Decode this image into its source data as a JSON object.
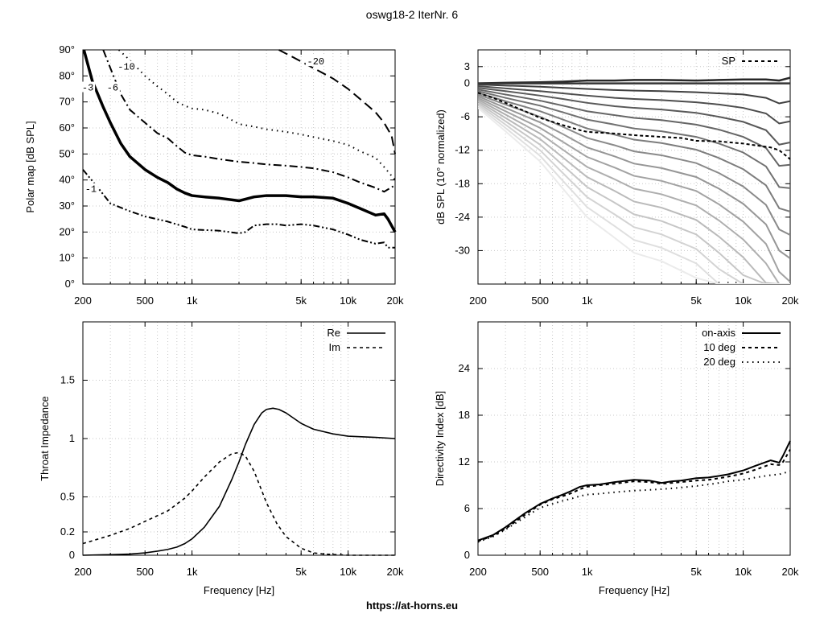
{
  "figure": {
    "title": "oswg18-2 IterNr. 6",
    "footer": "https://at-horns.eu"
  },
  "chart_data": [
    {
      "id": "polar",
      "type": "line",
      "subtype": "contour",
      "xlabel": "",
      "ylabel": "Polar map [dB SPL]",
      "xscale": "log",
      "xlim": [
        200,
        20000
      ],
      "ylim": [
        0,
        90
      ],
      "xticks": [
        200,
        500,
        1000,
        5000,
        10000,
        20000
      ],
      "xtick_labels": [
        "200",
        "500",
        "1k",
        "5k",
        "10k",
        "20k"
      ],
      "yticks": [
        0,
        10,
        20,
        30,
        40,
        50,
        60,
        70,
        80,
        90
      ],
      "ytick_labels": [
        "0°",
        "10°",
        "20°",
        "30°",
        "40°",
        "50°",
        "60°",
        "70°",
        "80°",
        "90°"
      ],
      "grid": true,
      "series": [
        {
          "name": "-1",
          "style": "dash-dot-dot",
          "width": 2,
          "x": [
            200,
            250,
            300,
            400,
            500,
            700,
            900,
            1000,
            1500,
            2000,
            2200,
            2500,
            3000,
            3500,
            4000,
            5000,
            6000,
            8000,
            10000,
            12000,
            15000,
            17000,
            18000,
            20000
          ],
          "y": [
            44,
            37,
            31,
            28,
            26,
            24,
            22,
            21,
            20.5,
            19.5,
            20,
            22.5,
            23,
            23,
            22.5,
            23,
            22.5,
            21,
            19,
            17,
            15.5,
            16,
            14,
            14
          ]
        },
        {
          "name": "-3",
          "style": "solid",
          "width": 3.5,
          "x": [
            203,
            230,
            270,
            300,
            350,
            400,
            500,
            600,
            700,
            800,
            900,
            1000,
            1200,
            1500,
            2000,
            2500,
            3000,
            3500,
            4000,
            5000,
            6000,
            8000,
            10000,
            12000,
            15000,
            17000,
            18000,
            20000
          ],
          "y": [
            90,
            78,
            68,
            62,
            54,
            49,
            44,
            41,
            39,
            36.5,
            35,
            34,
            33.5,
            33,
            32,
            33.5,
            34,
            34,
            34,
            33.5,
            33.5,
            33,
            31,
            29,
            26.5,
            27,
            25,
            20
          ]
        },
        {
          "name": "-6",
          "style": "dash-dot",
          "width": 2,
          "x": [
            270,
            300,
            350,
            400,
            500,
            600,
            700,
            800,
            900,
            1000,
            1200,
            1500,
            2000,
            2500,
            3000,
            4000,
            5000,
            6000,
            8000,
            10000,
            12000,
            15000,
            17000,
            20000
          ],
          "y": [
            90,
            83,
            73,
            67,
            62,
            58,
            56,
            53,
            50.5,
            49.5,
            49,
            48,
            47,
            46.5,
            46,
            45.5,
            45,
            44.5,
            43,
            41,
            39,
            37,
            35.5,
            38
          ]
        },
        {
          "name": "-10",
          "style": "dotted",
          "width": 2,
          "x": [
            340,
            400,
            500,
            600,
            700,
            800,
            900,
            1000,
            1200,
            1500,
            1800,
            2000,
            2500,
            3000,
            4000,
            5000,
            6000,
            8000,
            10000,
            12000,
            15000,
            17000,
            20000
          ],
          "y": [
            90,
            86,
            80,
            76,
            73,
            70,
            68.5,
            67.5,
            67,
            65.5,
            63,
            61.5,
            60.5,
            59.5,
            58.5,
            57.5,
            56.5,
            55,
            53.5,
            51,
            48.5,
            45,
            40
          ]
        },
        {
          "name": "-20",
          "style": "long-dash",
          "width": 2,
          "x": [
            3600,
            4500,
            6000,
            8000,
            10000,
            12000,
            15000,
            17000,
            19000,
            20000
          ],
          "y": [
            90,
            87,
            83,
            79,
            75,
            71,
            66,
            62,
            57,
            50
          ]
        }
      ],
      "annotations": [
        {
          "text": "-3",
          "x": 215,
          "y": 75
        },
        {
          "text": "-6",
          "x": 310,
          "y": 75
        },
        {
          "text": "-10",
          "x": 380,
          "y": 83
        },
        {
          "text": "-20",
          "x": 6200,
          "y": 85
        },
        {
          "text": "-1",
          "x": 225,
          "y": 36
        }
      ]
    },
    {
      "id": "normalized",
      "type": "line",
      "xlabel": "",
      "ylabel": "dB SPL (10° normalized)",
      "xscale": "log",
      "xlim": [
        200,
        20000
      ],
      "ylim": [
        -36,
        6
      ],
      "xticks": [
        200,
        500,
        1000,
        5000,
        10000,
        20000
      ],
      "xtick_labels": [
        "200",
        "500",
        "1k",
        "5k",
        "10k",
        "20k"
      ],
      "yticks": [
        3,
        0,
        -6,
        -12,
        -18,
        -24,
        -30
      ],
      "ytick_labels": [
        "3",
        "0",
        "-6",
        "-12",
        "-18",
        "-24",
        "-30"
      ],
      "grid": true,
      "legend": {
        "position": "top-right",
        "entries": [
          "SP"
        ]
      },
      "sp_series": {
        "name": "SP",
        "x": [
          200,
          250,
          300,
          400,
          500,
          700,
          900,
          1000,
          1500,
          2000,
          3000,
          4000,
          5000,
          7000,
          10000,
          15000,
          17000,
          20000
        ],
        "y": [
          -1.7,
          -2.6,
          -3.5,
          -5,
          -6.2,
          -7.5,
          -8.4,
          -8.7,
          -9,
          -9.3,
          -9.6,
          -9.8,
          -10.3,
          -10.4,
          -10.8,
          -11.5,
          -12,
          -13.6
        ]
      },
      "family": {
        "count": 17,
        "step_deg": 5,
        "x": [
          200,
          300,
          500,
          700,
          1000,
          1500,
          2000,
          3000,
          5000,
          7000,
          10000,
          14000,
          17000,
          20000
        ],
        "curves": [
          [
            0,
            0.1,
            0.2,
            0.3,
            0.5,
            0.5,
            0.6,
            0.6,
            0.5,
            0.6,
            0.7,
            0.7,
            0.5,
            1.0
          ],
          [
            0,
            0,
            0,
            0,
            0,
            0,
            0,
            0,
            0,
            0,
            0,
            0,
            0,
            0
          ],
          [
            -0.2,
            -0.4,
            -0.6,
            -0.8,
            -1.0,
            -1.2,
            -1.3,
            -1.4,
            -1.6,
            -1.8,
            -2.0,
            -2.6,
            -3.6,
            -3.2
          ],
          [
            -0.5,
            -0.9,
            -1.4,
            -1.8,
            -2.2,
            -2.6,
            -2.8,
            -3.0,
            -3.4,
            -3.8,
            -4.4,
            -5.4,
            -7.2,
            -6.8
          ],
          [
            -0.8,
            -1.4,
            -2.2,
            -2.8,
            -3.5,
            -4.1,
            -4.4,
            -4.7,
            -5.3,
            -6.0,
            -6.9,
            -8.4,
            -11.0,
            -10.6
          ],
          [
            -1.1,
            -2.0,
            -3.1,
            -4.0,
            -5.0,
            -5.7,
            -6.2,
            -6.6,
            -7.4,
            -8.3,
            -9.6,
            -11.6,
            -14.8,
            -14.6
          ],
          [
            -1.4,
            -2.6,
            -4.0,
            -5.2,
            -6.5,
            -7.4,
            -8.1,
            -8.6,
            -9.6,
            -10.8,
            -12.4,
            -14.9,
            -18.6,
            -18.8
          ],
          [
            -1.7,
            -3.2,
            -5.0,
            -6.5,
            -8.1,
            -9.2,
            -10.1,
            -10.7,
            -11.9,
            -13.4,
            -15.4,
            -18.3,
            -22.4,
            -23.0
          ],
          [
            -2.0,
            -3.8,
            -6.0,
            -7.8,
            -9.8,
            -11.1,
            -12.2,
            -12.9,
            -14.3,
            -16.1,
            -18.5,
            -21.8,
            -26.2,
            -27.2
          ],
          [
            -2.3,
            -4.4,
            -7.0,
            -9.1,
            -11.5,
            -13.1,
            -14.4,
            -15.2,
            -16.8,
            -18.9,
            -21.6,
            -25.3,
            -30.0,
            -31.4
          ],
          [
            -2.6,
            -5.0,
            -8.0,
            -10.5,
            -13.2,
            -15.1,
            -16.6,
            -17.5,
            -19.3,
            -21.7,
            -24.8,
            -28.8,
            -33.8,
            -35.6
          ],
          [
            -2.9,
            -5.6,
            -9.0,
            -11.9,
            -15.0,
            -17.2,
            -18.9,
            -19.9,
            -21.9,
            -24.6,
            -28.0,
            -32.3,
            -36,
            -36
          ],
          [
            -3.2,
            -6.2,
            -10.0,
            -13.3,
            -16.8,
            -19.3,
            -21.2,
            -22.3,
            -24.5,
            -27.5,
            -31.2,
            -35.8,
            -36,
            -36
          ],
          [
            -3.5,
            -6.8,
            -11.0,
            -14.7,
            -18.6,
            -21.4,
            -23.5,
            -24.7,
            -27.1,
            -30.4,
            -34.4,
            -36,
            -36,
            -36
          ],
          [
            -3.8,
            -7.4,
            -12.0,
            -16.1,
            -20.4,
            -23.5,
            -25.8,
            -27.1,
            -29.7,
            -33.3,
            -36,
            -36,
            -36,
            -36
          ],
          [
            -4.1,
            -8.0,
            -13.0,
            -17.5,
            -22.2,
            -25.6,
            -28.1,
            -29.5,
            -32.3,
            -36,
            -36,
            -36,
            -36,
            -36
          ],
          [
            -4.4,
            -8.6,
            -14.0,
            -18.9,
            -24.0,
            -27.7,
            -30.4,
            -31.9,
            -34.9,
            -36,
            -36,
            -36,
            -36,
            -36
          ]
        ]
      }
    },
    {
      "id": "impedance",
      "type": "line",
      "xlabel": "Frequency [Hz]",
      "ylabel": "Throat Impedance",
      "xscale": "log",
      "xlim": [
        200,
        20000
      ],
      "ylim": [
        0,
        2
      ],
      "xticks": [
        200,
        500,
        1000,
        5000,
        10000,
        20000
      ],
      "xtick_labels": [
        "200",
        "500",
        "1k",
        "5k",
        "10k",
        "20k"
      ],
      "yticks": [
        0,
        0.2,
        0.5,
        1,
        1.5
      ],
      "ytick_labels": [
        "0",
        "0.2",
        "0.5",
        "1",
        "1.5"
      ],
      "grid": true,
      "legend": {
        "position": "top-right",
        "entries": [
          "Re",
          "Im"
        ]
      },
      "series": [
        {
          "name": "Re",
          "style": "solid",
          "x": [
            200,
            300,
            400,
            500,
            600,
            700,
            800,
            900,
            1000,
            1200,
            1500,
            1800,
            2000,
            2200,
            2500,
            2800,
            3000,
            3300,
            3600,
            4000,
            5000,
            6000,
            8000,
            10000,
            15000,
            20000
          ],
          "y": [
            0,
            0.005,
            0.01,
            0.02,
            0.035,
            0.05,
            0.07,
            0.1,
            0.14,
            0.24,
            0.42,
            0.65,
            0.8,
            0.95,
            1.12,
            1.22,
            1.25,
            1.26,
            1.25,
            1.22,
            1.13,
            1.08,
            1.04,
            1.02,
            1.01,
            1.0
          ]
        },
        {
          "name": "Im",
          "style": "dashed",
          "x": [
            200,
            300,
            400,
            500,
            700,
            900,
            1000,
            1200,
            1500,
            1800,
            2000,
            2200,
            2500,
            3000,
            3500,
            4000,
            5000,
            6000,
            7000,
            10000,
            15000,
            20000
          ],
          "y": [
            0.1,
            0.17,
            0.23,
            0.29,
            0.38,
            0.49,
            0.55,
            0.67,
            0.8,
            0.87,
            0.88,
            0.85,
            0.72,
            0.45,
            0.27,
            0.16,
            0.06,
            0.02,
            0.01,
            0,
            0,
            0
          ]
        }
      ]
    },
    {
      "id": "directivity",
      "type": "line",
      "xlabel": "Frequency [Hz]",
      "ylabel": "Directivity Index [dB]",
      "xscale": "log",
      "xlim": [
        200,
        20000
      ],
      "ylim": [
        0,
        30
      ],
      "xticks": [
        200,
        500,
        1000,
        5000,
        10000,
        20000
      ],
      "xtick_labels": [
        "200",
        "500",
        "1k",
        "5k",
        "10k",
        "20k"
      ],
      "yticks": [
        0,
        6,
        12,
        18,
        24
      ],
      "ytick_labels": [
        "0",
        "6",
        "12",
        "18",
        "24"
      ],
      "grid": true,
      "legend": {
        "position": "top-right",
        "entries": [
          "on-axis",
          "10 deg",
          "20 deg"
        ]
      },
      "series": [
        {
          "name": "on-axis",
          "style": "solid",
          "x": [
            200,
            250,
            300,
            400,
            500,
            600,
            700,
            800,
            900,
            1000,
            1200,
            1500,
            2000,
            2500,
            3000,
            3500,
            4000,
            5000,
            6000,
            7000,
            8000,
            10000,
            12000,
            15000,
            17000,
            18000,
            20000
          ],
          "y": [
            1.9,
            2.6,
            3.6,
            5.4,
            6.6,
            7.3,
            7.8,
            8.3,
            8.8,
            9.0,
            9.1,
            9.4,
            9.7,
            9.6,
            9.3,
            9.5,
            9.6,
            9.9,
            10.0,
            10.2,
            10.4,
            10.9,
            11.5,
            12.2,
            11.9,
            12.8,
            14.7
          ]
        },
        {
          "name": "10 deg",
          "style": "dashed",
          "x": [
            200,
            250,
            300,
            400,
            500,
            600,
            700,
            800,
            900,
            1000,
            1200,
            1500,
            2000,
            2500,
            3000,
            3500,
            4000,
            5000,
            6000,
            7000,
            8000,
            10000,
            12000,
            15000,
            17000,
            18000,
            20000
          ],
          "y": [
            1.8,
            2.5,
            3.4,
            5.2,
            6.5,
            7.2,
            7.6,
            8.0,
            8.5,
            8.8,
            9.0,
            9.2,
            9.5,
            9.4,
            9.2,
            9.3,
            9.4,
            9.6,
            9.7,
            9.9,
            10.1,
            10.5,
            11.0,
            11.7,
            11.6,
            12.0,
            13.6
          ]
        },
        {
          "name": "20 deg",
          "style": "dotted",
          "x": [
            200,
            250,
            300,
            400,
            500,
            600,
            700,
            800,
            900,
            1000,
            1200,
            1500,
            2000,
            2500,
            3000,
            3500,
            4000,
            5000,
            6000,
            7000,
            8000,
            10000,
            12000,
            15000,
            17000,
            20000
          ],
          "y": [
            1.7,
            2.4,
            3.3,
            4.9,
            6.1,
            6.6,
            7.0,
            7.3,
            7.6,
            7.8,
            7.9,
            8.1,
            8.3,
            8.4,
            8.5,
            8.6,
            8.7,
            8.9,
            9.1,
            9.3,
            9.5,
            9.7,
            10.0,
            10.3,
            10.4,
            10.8
          ]
        }
      ]
    }
  ]
}
